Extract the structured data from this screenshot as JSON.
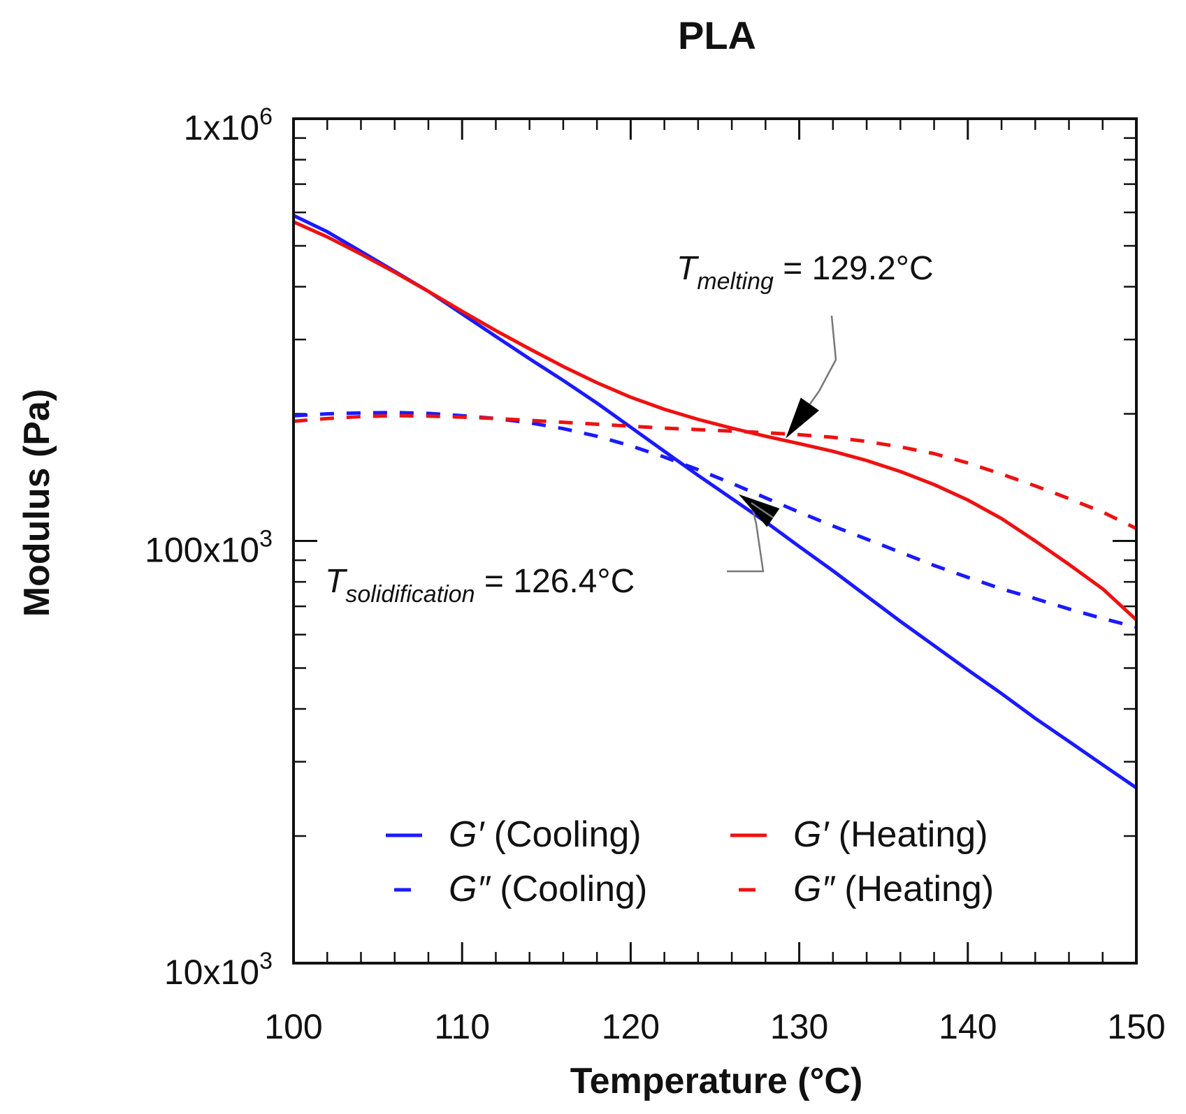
{
  "chart_data": {
    "type": "line",
    "title": "PLA",
    "xlabel": "Temperature (°C)",
    "ylabel": "Modulus (Pa)",
    "xlim": [
      100,
      150
    ],
    "ylim": [
      10000,
      1000000
    ],
    "yscale": "log",
    "x_ticks": [
      {
        "value": 100,
        "label": "100"
      },
      {
        "value": 110,
        "label": "110"
      },
      {
        "value": 120,
        "label": "120"
      },
      {
        "value": 130,
        "label": "130"
      },
      {
        "value": 140,
        "label": "140"
      },
      {
        "value": 150,
        "label": "150"
      }
    ],
    "y_ticks": [
      {
        "value": 1000000,
        "base": "1x10",
        "exp": "6"
      },
      {
        "value": 100000,
        "base": "100x10",
        "exp": "3"
      },
      {
        "value": 10000,
        "base": "10x10",
        "exp": "3"
      }
    ],
    "grid": false,
    "legend_position": "bottom-right",
    "series": [
      {
        "name": "G′ (Cooling)",
        "prime": "G′",
        "label": "(Cooling)",
        "color": "#1a1aff",
        "style": "solid",
        "x": [
          100,
          102,
          104,
          106,
          108,
          110,
          112,
          114,
          116,
          118,
          120,
          122,
          124,
          126,
          128,
          130,
          132,
          134,
          136,
          138,
          140,
          142,
          144,
          146,
          148,
          150
        ],
        "y": [
          590000,
          540000,
          485000,
          435000,
          390000,
          345000,
          305000,
          270000,
          240000,
          212000,
          186000,
          163000,
          143000,
          126000,
          111000,
          97000,
          85000,
          74000,
          64500,
          56500,
          49500,
          43500,
          38000,
          33500,
          29500,
          26000
        ]
      },
      {
        "name": "G″ (Cooling)",
        "prime": "G″",
        "label": "(Cooling)",
        "color": "#1a1aff",
        "style": "dashed",
        "x": [
          100,
          102,
          104,
          106,
          108,
          110,
          112,
          114,
          116,
          118,
          120,
          122,
          124,
          126,
          128,
          130,
          132,
          134,
          136,
          138,
          140,
          142,
          144,
          146,
          148,
          150
        ],
        "y": [
          198000,
          200000,
          201000,
          201500,
          200500,
          198000,
          195000,
          190500,
          184500,
          177000,
          168000,
          158000,
          147500,
          137000,
          126500,
          117000,
          108500,
          101000,
          94000,
          87500,
          82000,
          77000,
          73000,
          69000,
          65500,
          62500
        ]
      },
      {
        "name": "G′ (Heating)",
        "prime": "G′",
        "label": "(Heating)",
        "color": "#ee1111",
        "style": "solid",
        "x": [
          100,
          102,
          104,
          106,
          108,
          110,
          112,
          114,
          116,
          118,
          120,
          122,
          124,
          126,
          128,
          130,
          132,
          134,
          136,
          138,
          140,
          142,
          144,
          146,
          148,
          150
        ],
        "y": [
          570000,
          525000,
          478000,
          433000,
          390000,
          350000,
          315000,
          285000,
          259000,
          237000,
          219000,
          205000,
          194000,
          185000,
          177000,
          170000,
          163000,
          155000,
          146000,
          136000,
          125000,
          113000,
          100000,
          88000,
          77000,
          65000
        ]
      },
      {
        "name": "G″ (Heating)",
        "prime": "G″",
        "label": "(Heating)",
        "color": "#ee1111",
        "style": "dashed",
        "x": [
          100,
          102,
          104,
          106,
          108,
          110,
          112,
          114,
          116,
          118,
          120,
          122,
          124,
          126,
          128,
          130,
          132,
          134,
          136,
          138,
          140,
          142,
          144,
          146,
          148,
          150
        ],
        "y": [
          192000,
          195000,
          197000,
          198000,
          197500,
          196500,
          195000,
          193000,
          191000,
          189000,
          187000,
          185000,
          183500,
          182000,
          180500,
          178500,
          176000,
          172000,
          167000,
          161000,
          153000,
          144000,
          135000,
          126000,
          117000,
          107000
        ]
      }
    ],
    "annotations": [
      {
        "sym": "T",
        "sub": "melting",
        "text": "= 129.2°C",
        "x": 129.2,
        "y": 175000
      },
      {
        "sym": "T",
        "sub": "solidification",
        "text": "= 126.4°C",
        "x": 126.4,
        "y": 129000
      }
    ]
  }
}
